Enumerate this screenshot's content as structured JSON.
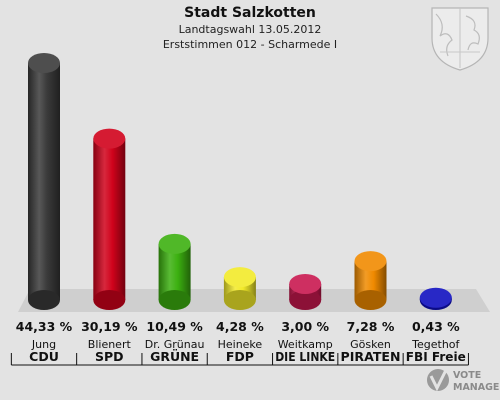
{
  "header": {
    "title": "Stadt Salzkotten",
    "subtitle1": "Landtagswahl 13.05.2012",
    "subtitle2": "Erststimmen 012 - Scharmede I"
  },
  "watermark": {
    "line1": "VOTE",
    "line2": "MANAGER"
  },
  "chart_data": {
    "type": "bar",
    "categories": [
      "CDU",
      "SPD",
      "GRÜNE",
      "FDP",
      "DIE LINKE",
      "PIRATEN",
      "FBI Freie"
    ],
    "candidates": [
      "Jung",
      "Blienert",
      "Dr. Grünau",
      "Heineke",
      "Weitkamp",
      "Gösken",
      "Tegethof"
    ],
    "values": [
      44.33,
      30.19,
      10.49,
      4.28,
      3.0,
      7.28,
      0.43
    ],
    "value_labels": [
      "44,33 %",
      "30,19 %",
      "10,49 %",
      "4,28 %",
      "3,00 %",
      "7,28 %",
      "0,43 %"
    ],
    "colors": [
      "#3a3a3a",
      "#d0021b",
      "#3cb010",
      "#f2ea2a",
      "#c8184f",
      "#f08a00",
      "#1010c0"
    ],
    "ylim": [
      0,
      50
    ],
    "grid": false,
    "legend": "none"
  }
}
